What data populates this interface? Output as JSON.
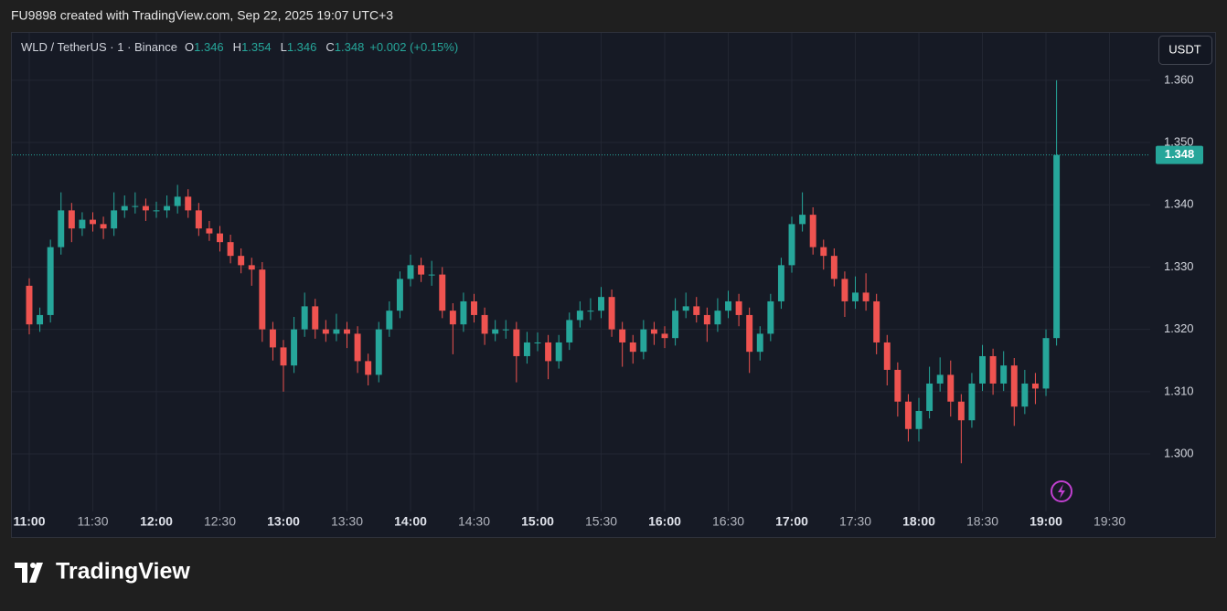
{
  "header": {
    "credit": "FU9898 created with TradingView.com, Sep 22, 2025 19:07 UTC+3",
    "brand": "TradingView"
  },
  "chart_data": {
    "type": "candlestick",
    "symbol": "WLD / TetherUS · 1 · Binance",
    "ohlc": [
      {
        "label": "O",
        "value": 1.346
      },
      {
        "label": "H",
        "value": 1.354
      },
      {
        "label": "L",
        "value": 1.346
      },
      {
        "label": "C",
        "value": 1.348
      }
    ],
    "change": "+0.002 (+0.15%)",
    "currency": "USDT",
    "last_price": 1.348,
    "colors": {
      "up": "#26a69a",
      "down": "#ef5350"
    },
    "x": [
      660,
      665,
      670,
      675,
      680,
      685,
      690,
      695,
      700,
      705,
      710,
      715,
      720,
      725,
      730,
      735,
      740,
      745,
      750,
      755,
      760,
      765,
      770,
      775,
      780,
      785,
      790,
      795,
      800,
      805,
      810,
      815,
      820,
      825,
      830,
      835,
      840,
      845,
      850,
      855,
      860,
      865,
      870,
      875,
      880,
      885,
      890,
      895,
      900,
      905,
      910,
      915,
      920,
      925,
      930,
      935,
      940,
      945,
      950,
      955,
      960,
      965,
      970,
      975,
      980,
      985,
      990,
      995,
      1000,
      1005,
      1010,
      1015,
      1020,
      1025,
      1030,
      1035,
      1040,
      1045,
      1050,
      1055,
      1060,
      1065,
      1070,
      1075,
      1080,
      1085,
      1090,
      1095,
      1100,
      1105,
      1110,
      1115,
      1120,
      1125,
      1130,
      1135,
      1140,
      1145
    ],
    "open": [
      1.327,
      1.3208,
      1.3223,
      1.3332,
      1.3391,
      1.3362,
      1.3376,
      1.3369,
      1.3362,
      1.3391,
      1.3398,
      1.3398,
      1.3391,
      1.3391,
      1.3398,
      1.3413,
      1.3391,
      1.3362,
      1.3354,
      1.334,
      1.3318,
      1.3303,
      1.3296,
      1.32,
      1.3171,
      1.3142,
      1.32,
      1.3237,
      1.32,
      1.3193,
      1.32,
      1.3193,
      1.3149,
      1.3127,
      1.32,
      1.323,
      1.3281,
      1.3303,
      1.3288,
      1.3288,
      1.323,
      1.3208,
      1.3245,
      1.3223,
      1.3193,
      1.32,
      1.32,
      1.3157,
      1.3179,
      1.3179,
      1.3149,
      1.3179,
      1.3215,
      1.323,
      1.323,
      1.3252,
      1.32,
      1.3179,
      1.3164,
      1.32,
      1.3193,
      1.3186,
      1.323,
      1.3237,
      1.3223,
      1.3208,
      1.323,
      1.3245,
      1.3223,
      1.3164,
      1.3193,
      1.3245,
      1.3303,
      1.3369,
      1.3384,
      1.3332,
      1.3318,
      1.3281,
      1.3245,
      1.3259,
      1.3245,
      1.3179,
      1.3135,
      1.3084,
      1.304,
      1.3069,
      1.3113,
      1.3127,
      1.3084,
      1.3054,
      1.3113,
      1.3157,
      1.3113,
      1.3142,
      1.3076,
      1.3113,
      1.3105,
      1.3186
    ],
    "high": [
      1.3282,
      1.3235,
      1.3344,
      1.342,
      1.3403,
      1.3388,
      1.3388,
      1.3381,
      1.342,
      1.3415,
      1.342,
      1.341,
      1.3405,
      1.3415,
      1.3432,
      1.3425,
      1.3403,
      1.3374,
      1.3366,
      1.3352,
      1.333,
      1.3315,
      1.3308,
      1.3212,
      1.3183,
      1.322,
      1.3259,
      1.3249,
      1.3215,
      1.3225,
      1.3212,
      1.3205,
      1.3161,
      1.3212,
      1.3245,
      1.3293,
      1.332,
      1.3315,
      1.331,
      1.33,
      1.3242,
      1.3259,
      1.3257,
      1.3235,
      1.3215,
      1.3215,
      1.3212,
      1.3196,
      1.3195,
      1.3191,
      1.3191,
      1.3227,
      1.3245,
      1.325,
      1.3268,
      1.3264,
      1.3212,
      1.3191,
      1.3215,
      1.3212,
      1.3205,
      1.325,
      1.3259,
      1.3252,
      1.3235,
      1.325,
      1.3262,
      1.3257,
      1.3235,
      1.3205,
      1.3257,
      1.3315,
      1.3381,
      1.342,
      1.3396,
      1.3344,
      1.333,
      1.3293,
      1.3285,
      1.329,
      1.3257,
      1.3191,
      1.3147,
      1.3096,
      1.309,
      1.314,
      1.3155,
      1.315,
      1.3096,
      1.313,
      1.3175,
      1.3169,
      1.3165,
      1.3154,
      1.3135,
      1.313,
      1.32,
      1.36
    ],
    "low": [
      1.3192,
      1.3196,
      1.3211,
      1.332,
      1.334,
      1.335,
      1.3357,
      1.3345,
      1.335,
      1.3379,
      1.3386,
      1.3374,
      1.3379,
      1.3379,
      1.3386,
      1.3379,
      1.335,
      1.3342,
      1.3325,
      1.3306,
      1.329,
      1.327,
      1.318,
      1.315,
      1.31,
      1.313,
      1.3188,
      1.3185,
      1.318,
      1.3181,
      1.317,
      1.313,
      1.311,
      1.3115,
      1.3188,
      1.3218,
      1.3269,
      1.3276,
      1.327,
      1.3218,
      1.316,
      1.3196,
      1.3211,
      1.3175,
      1.3181,
      1.3185,
      1.3115,
      1.3145,
      1.3165,
      1.312,
      1.3137,
      1.3167,
      1.3203,
      1.3215,
      1.3218,
      1.3188,
      1.314,
      1.3145,
      1.3152,
      1.3175,
      1.317,
      1.3174,
      1.3218,
      1.3211,
      1.318,
      1.3196,
      1.3218,
      1.3205,
      1.313,
      1.315,
      1.3181,
      1.3233,
      1.3291,
      1.3357,
      1.332,
      1.3296,
      1.3269,
      1.322,
      1.3233,
      1.323,
      1.316,
      1.311,
      1.306,
      1.302,
      1.302,
      1.3057,
      1.31,
      1.306,
      1.2985,
      1.3042,
      1.3101,
      1.3095,
      1.3101,
      1.3045,
      1.3064,
      1.308,
      1.3093,
      1.3174
    ],
    "close": [
      1.3208,
      1.3223,
      1.3332,
      1.3391,
      1.3362,
      1.3376,
      1.3369,
      1.3362,
      1.3391,
      1.3398,
      1.3398,
      1.3391,
      1.3391,
      1.3398,
      1.3413,
      1.3391,
      1.3362,
      1.3354,
      1.334,
      1.3318,
      1.3303,
      1.3296,
      1.32,
      1.3171,
      1.3142,
      1.32,
      1.3237,
      1.32,
      1.3193,
      1.32,
      1.3193,
      1.3149,
      1.3127,
      1.32,
      1.323,
      1.3281,
      1.3303,
      1.3288,
      1.3288,
      1.323,
      1.3208,
      1.3245,
      1.3223,
      1.3193,
      1.32,
      1.32,
      1.3157,
      1.3179,
      1.3179,
      1.3149,
      1.3179,
      1.3215,
      1.323,
      1.323,
      1.3252,
      1.32,
      1.3179,
      1.3164,
      1.32,
      1.3193,
      1.3186,
      1.323,
      1.3237,
      1.3223,
      1.3208,
      1.323,
      1.3245,
      1.3223,
      1.3164,
      1.3193,
      1.3245,
      1.3303,
      1.3369,
      1.3384,
      1.3332,
      1.3318,
      1.3281,
      1.3245,
      1.3259,
      1.3245,
      1.3179,
      1.3135,
      1.3084,
      1.304,
      1.3069,
      1.3113,
      1.3127,
      1.3084,
      1.3054,
      1.3113,
      1.3157,
      1.3113,
      1.3142,
      1.3076,
      1.3113,
      1.3105,
      1.3186,
      1.348
    ],
    "xlim": [
      651.8,
      1189.2
    ],
    "ylim": [
      1.2915,
      1.3676
    ],
    "xticks": [
      {
        "value": 660,
        "label": "11:00"
      },
      {
        "value": 690,
        "label": "11:30"
      },
      {
        "value": 720,
        "label": "12:00"
      },
      {
        "value": 750,
        "label": "12:30"
      },
      {
        "value": 780,
        "label": "13:00"
      },
      {
        "value": 810,
        "label": "13:30"
      },
      {
        "value": 840,
        "label": "14:00"
      },
      {
        "value": 870,
        "label": "14:30"
      },
      {
        "value": 900,
        "label": "15:00"
      },
      {
        "value": 930,
        "label": "15:30"
      },
      {
        "value": 960,
        "label": "16:00"
      },
      {
        "value": 990,
        "label": "16:30"
      },
      {
        "value": 1020,
        "label": "17:00"
      },
      {
        "value": 1050,
        "label": "17:30"
      },
      {
        "value": 1080,
        "label": "18:00"
      },
      {
        "value": 1110,
        "label": "18:30"
      },
      {
        "value": 1140,
        "label": "19:00"
      },
      {
        "value": 1170,
        "label": "19:30"
      }
    ],
    "yticks": [
      {
        "value": 1.3,
        "label": "1.300"
      },
      {
        "value": 1.31,
        "label": "1.310"
      },
      {
        "value": 1.32,
        "label": "1.320"
      },
      {
        "value": 1.33,
        "label": "1.330"
      },
      {
        "value": 1.34,
        "label": "1.340"
      },
      {
        "value": 1.35,
        "label": "1.350"
      },
      {
        "value": 1.36,
        "label": "1.360"
      }
    ],
    "grid": true
  }
}
